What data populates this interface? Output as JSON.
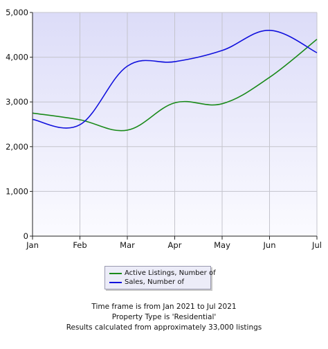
{
  "chart_data": {
    "type": "line",
    "categories": [
      "Jan",
      "Feb",
      "Mar",
      "Apr",
      "May",
      "Jun",
      "Jul"
    ],
    "ylim": [
      0,
      5000
    ],
    "yticks": [
      "0",
      "1,000",
      "2,000",
      "3,000",
      "4,000",
      "5,000"
    ],
    "ytick_values": [
      0,
      1000,
      2000,
      3000,
      4000,
      5000
    ],
    "grid": true,
    "legend_position": "bottom",
    "series": [
      {
        "name": "Active Listings, Number of",
        "color": "#1a8a1a",
        "values": [
          2750,
          2600,
          2370,
          2980,
          2960,
          3550,
          4400
        ]
      },
      {
        "name": "Sales, Number of",
        "color": "#1010dd",
        "values": [
          2610,
          2490,
          3800,
          3900,
          4150,
          4600,
          4100
        ]
      }
    ]
  },
  "notes": [
    "Time frame is from Jan 2021 to Jul 2021",
    "Property Type is 'Residential'",
    "Results calculated from approximately 33,000 listings"
  ]
}
